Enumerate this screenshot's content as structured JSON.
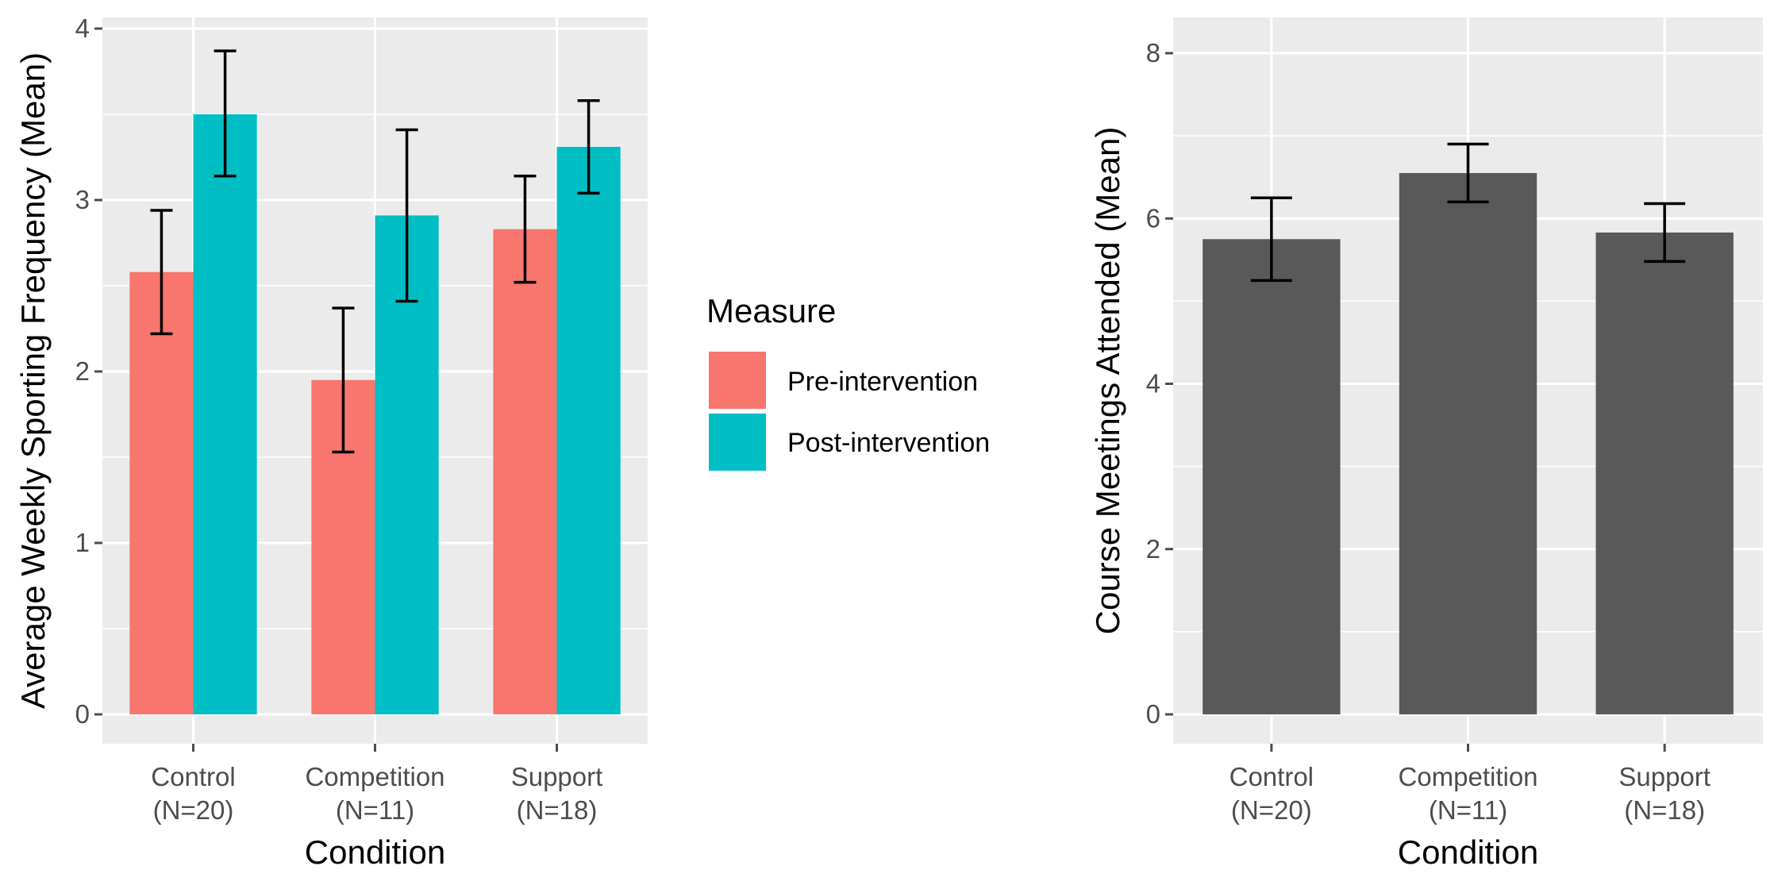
{
  "colors": {
    "panel_bg": "#ebebeb",
    "grid": "#ffffff",
    "pre": "#f8766d",
    "post": "#00bfc4",
    "single": "#595959",
    "error": "#000000",
    "tick": "#4d4d4d"
  },
  "chart_data": [
    {
      "type": "bar",
      "title": "",
      "xlabel": "Condition",
      "ylabel": "Average Weekly Sporting Frequency (Mean)",
      "ylim": [
        0,
        4
      ],
      "yticks": [
        "0",
        "1",
        "2",
        "3",
        "4"
      ],
      "categories": [
        "Control\n(N=20)",
        "Competition\n(N=11)",
        "Support\n(N=18)"
      ],
      "category_lines": [
        [
          "Control",
          "(N=20)"
        ],
        [
          "Competition",
          "(N=11)"
        ],
        [
          "Support",
          "(N=18)"
        ]
      ],
      "grid": true,
      "legend_position": "right",
      "legend": {
        "title": "Measure",
        "items": [
          "Pre-intervention",
          "Post-intervention"
        ]
      },
      "series": [
        {
          "name": "Pre-intervention",
          "color": "#f8766d",
          "values": [
            2.58,
            1.95,
            2.83
          ],
          "err_low": [
            2.22,
            1.53,
            2.52
          ],
          "err_high": [
            2.94,
            2.37,
            3.14
          ]
        },
        {
          "name": "Post-intervention",
          "color": "#00bfc4",
          "values": [
            3.5,
            2.91,
            3.31
          ],
          "err_low": [
            3.14,
            2.41,
            3.04
          ],
          "err_high": [
            3.87,
            3.41,
            3.58
          ]
        }
      ]
    },
    {
      "type": "bar",
      "title": "",
      "xlabel": "Condition",
      "ylabel": "Course Meetings Attended (Mean)",
      "ylim": [
        0,
        8
      ],
      "yticks": [
        "0",
        "2",
        "4",
        "6",
        "8"
      ],
      "categories": [
        "Control\n(N=20)",
        "Competition\n(N=11)",
        "Support\n(N=18)"
      ],
      "category_lines": [
        [
          "Control",
          "(N=20)"
        ],
        [
          "Competition",
          "(N=11)"
        ],
        [
          "Support",
          "(N=18)"
        ]
      ],
      "grid": true,
      "series": [
        {
          "color": "#595959",
          "values": [
            5.75,
            6.55,
            5.83
          ],
          "err_low": [
            5.25,
            6.2,
            5.48
          ],
          "err_high": [
            6.25,
            6.9,
            6.18
          ]
        }
      ]
    }
  ]
}
